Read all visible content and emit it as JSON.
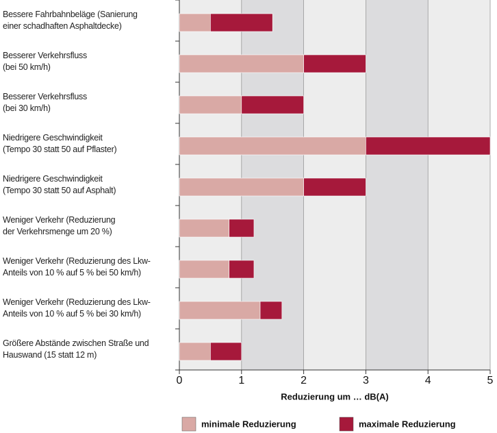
{
  "chart_data": {
    "type": "stacked-barh",
    "categories": [
      "Bessere Fahrbahnbeläge (Sanierung\neiner schadhaften Asphaltdecke)",
      "Besserer Verkehrsfluss\n(bei 50 km/h)",
      "Besserer Verkehrsfluss\n(bei 30 km/h)",
      "Niedrigere Geschwindigkeit\n(Tempo 30 statt 50 auf Pflaster)",
      "Niedrigere Geschwindigkeit\n(Tempo 30 statt 50 auf Asphalt)",
      "Weniger Verkehr (Reduzierung\nder Verkehrsmenge um 20 %)",
      "Weniger Verkehr (Reduzierung des Lkw-\nAnteils von 10 % auf 5 % bei 50 km/h)",
      "Weniger Verkehr (Reduzierung des Lkw-\nAnteils von 10 % auf 5 % bei 30 km/h)",
      "Größere Abstände zwischen Straße und\nHauswand (15 statt 12 m)"
    ],
    "series": [
      {
        "name": "minimale Reduzierung",
        "color": "#d9a9a5",
        "values": [
          0.5,
          2,
          1,
          3,
          2,
          0.8,
          0.8,
          1.3,
          0.5
        ]
      },
      {
        "name": "maximale Reduzierung",
        "color": "#a6193b",
        "values": [
          1,
          1,
          1,
          2,
          1,
          0.4,
          0.4,
          0.35,
          0.5
        ]
      }
    ],
    "xlabel": "Reduzierung um … dB(A)",
    "xlim": [
      0,
      5
    ],
    "xticks": [
      0,
      1,
      2,
      3,
      4,
      5
    ],
    "grid": true,
    "legend": "bottom"
  }
}
